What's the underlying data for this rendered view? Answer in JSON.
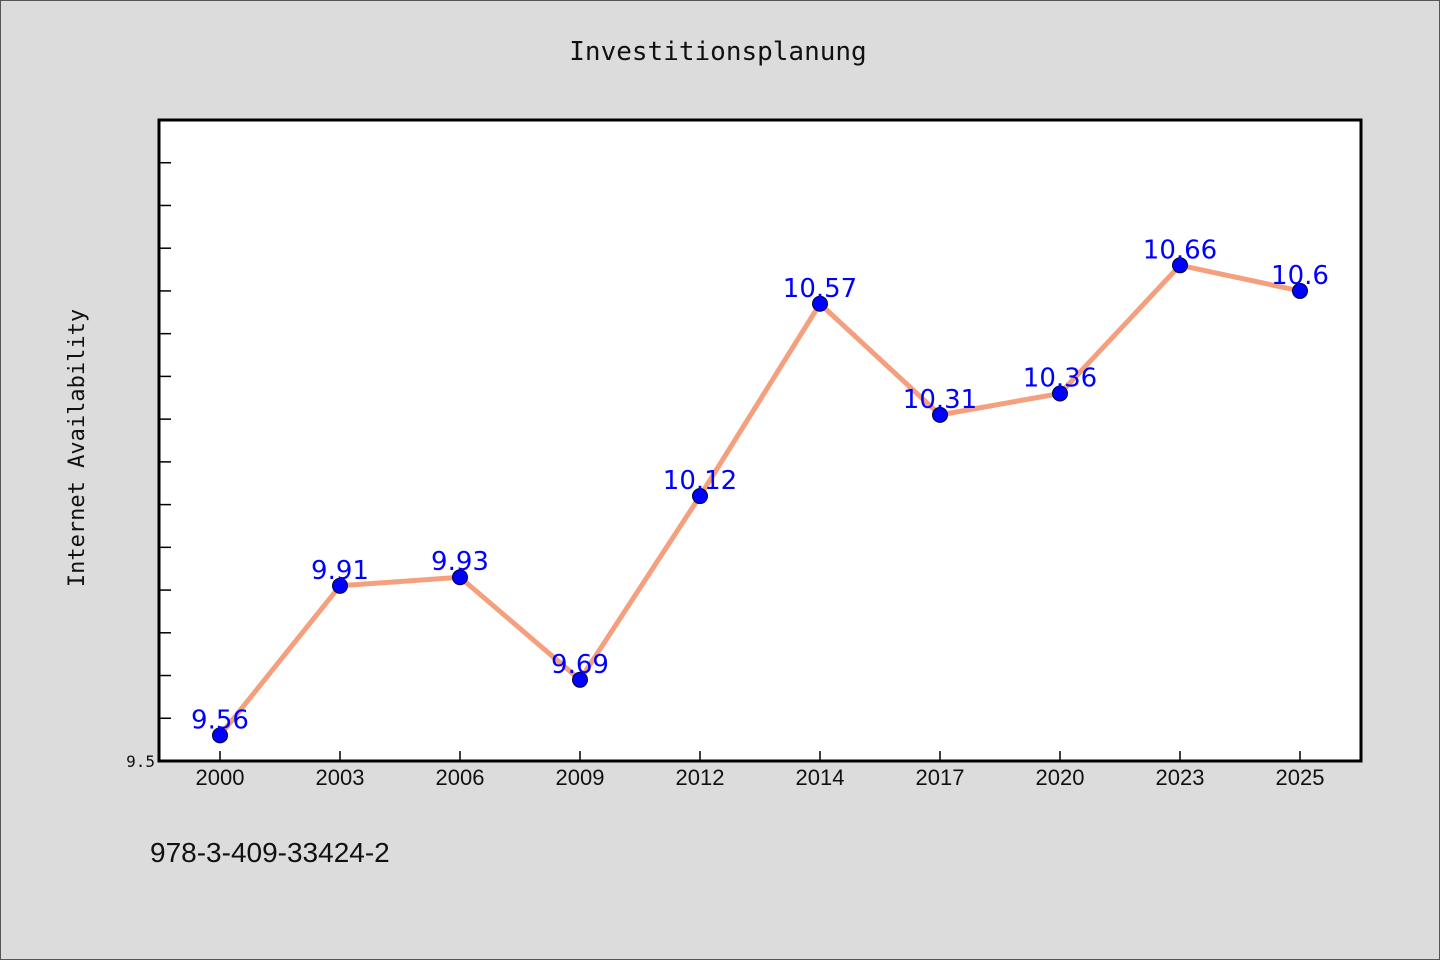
{
  "chart_data": {
    "type": "line",
    "title": "Investitionsplanung",
    "xlabel": "",
    "ylabel": "Internet Availability",
    "categories": [
      "2000",
      "2003",
      "2006",
      "2009",
      "2012",
      "2014",
      "2017",
      "2020",
      "2023",
      "2025"
    ],
    "series": [
      {
        "values": [
          9.56,
          9.91,
          9.93,
          9.69,
          10.12,
          10.57,
          10.31,
          10.36,
          10.66,
          10.6
        ],
        "labels": [
          "9.56",
          "9.91",
          "9.93",
          "9.69",
          "10.12",
          "10.57",
          "10.31",
          "10.36",
          "10.66",
          "10.6"
        ]
      }
    ],
    "ylim": [
      9.5,
      11.0
    ],
    "yticks_labeled": [
      "9.5"
    ],
    "ytick_step": 0.1,
    "grid": false,
    "colors": {
      "line": "#f4a07e",
      "marker": "#0000ff",
      "label": "#0000ff",
      "background": "#dcdcdc",
      "plot_background": "#ffffff"
    }
  },
  "footer": {
    "isbn": "978-3-409-33424-2"
  }
}
